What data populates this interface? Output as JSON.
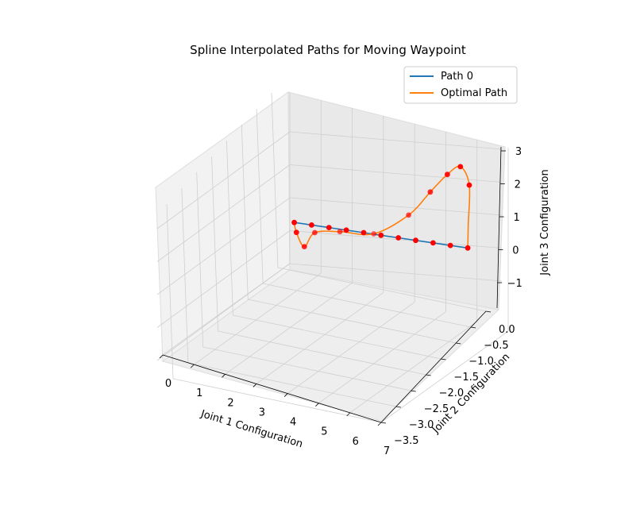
{
  "chart_data": {
    "type": "line",
    "title": "Spline Interpolated Paths for Moving Waypoint",
    "xlabel": "Joint 1 Configuration",
    "ylabel": "Joint 2 Configuration",
    "zlabel": "Joint 3 Configuration",
    "xlim": [
      0,
      7
    ],
    "ylim": [
      -3.5,
      0
    ],
    "zlim": [
      -1.5,
      3
    ],
    "x_ticks": [
      "0",
      "1",
      "2",
      "3",
      "4",
      "5",
      "6",
      "7"
    ],
    "y_ticks": [
      "0.0",
      "−0.5",
      "−1.0",
      "−1.5",
      "−2.0",
      "−2.5",
      "−3.0",
      "−3.5"
    ],
    "z_ticks": [
      "3",
      "2",
      "1",
      "0",
      "−1"
    ],
    "grid": true,
    "legend_position": "top-right",
    "series": [
      {
        "name": "Path 0",
        "color": "#1f77b4",
        "x": [
          0,
          0.7,
          1.4,
          2.1,
          2.8,
          3.5,
          4.2,
          4.9,
          5.6,
          6.3,
          7.0
        ],
        "y": [
          0,
          0,
          0,
          0,
          0,
          0,
          0,
          0,
          0,
          0,
          0
        ],
        "z": [
          0.8,
          0.72,
          0.64,
          0.56,
          0.48,
          0.4,
          0.32,
          0.24,
          0.16,
          0.08,
          0.0
        ]
      },
      {
        "name": "Optimal Path",
        "color": "#ff7f0e",
        "x": [
          0,
          0.0,
          0.2,
          0.5,
          1.4,
          2.7,
          4.2,
          5.2,
          6.0,
          6.6,
          7.0,
          7.0,
          7.0
        ],
        "y": [
          0,
          -0.6,
          -1.4,
          -2.1,
          -2.8,
          -3.2,
          -2.5,
          -1.6,
          -0.8,
          -0.3,
          -0.1,
          -0.02,
          0
        ],
        "z": [
          0.8,
          0.3,
          -0.4,
          -0.2,
          -0.4,
          -0.6,
          0.2,
          1.2,
          2.0,
          2.4,
          1.9,
          0.7,
          0.0
        ]
      }
    ],
    "waypoints": {
      "color": "#ff0000",
      "x": [
        0,
        0.7,
        1.4,
        2.1,
        2.8,
        3.5,
        4.2,
        4.9,
        5.6,
        6.3,
        7.0,
        0.0,
        0.5,
        0.2,
        1.4,
        2.7,
        4.2,
        5.2,
        6.0,
        6.6,
        7.0
      ],
      "y": [
        0,
        0,
        0,
        0,
        0,
        0,
        0,
        0,
        0,
        0,
        0,
        -0.6,
        -2.1,
        -1.4,
        -2.8,
        -3.2,
        -2.5,
        -1.6,
        -0.8,
        -0.3,
        -0.1
      ],
      "z": [
        0.8,
        0.72,
        0.64,
        0.56,
        0.48,
        0.4,
        0.32,
        0.24,
        0.16,
        0.08,
        0.0,
        0.3,
        -0.2,
        -0.4,
        -0.4,
        -0.6,
        0.2,
        1.2,
        2.0,
        2.4,
        1.9
      ]
    }
  }
}
